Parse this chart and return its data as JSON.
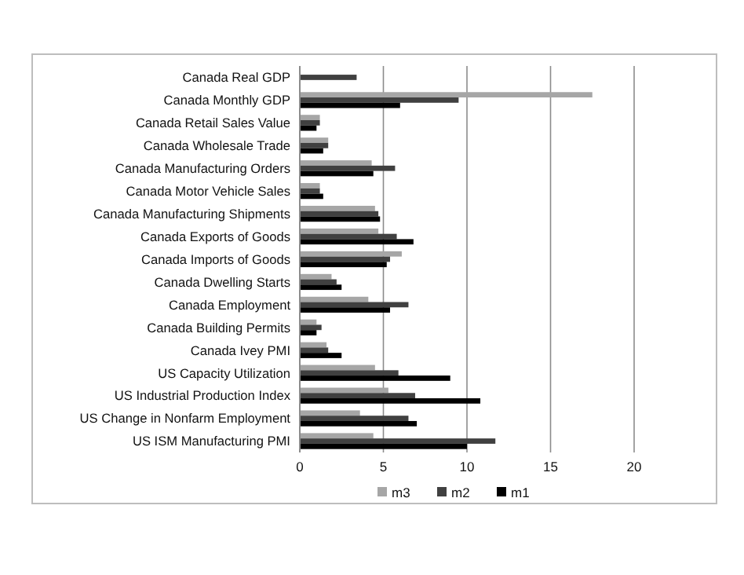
{
  "chart_data": {
    "type": "bar",
    "orientation": "horizontal",
    "categories": [
      "Canada Real GDP",
      "Canada Monthly GDP",
      "Canada Retail Sales Value",
      "Canada Wholesale Trade",
      "Canada Manufacturing Orders",
      "Canada Motor Vehicle Sales",
      "Canada Manufacturing Shipments",
      "Canada Exports of Goods",
      "Canada Imports of Goods",
      "Canada Dwelling Starts",
      "Canada Employment",
      "Canada Building Permits",
      "Canada Ivey PMI",
      "US Capacity Utilization",
      "US Industrial Production Index",
      "US Change in Nonfarm Employment",
      "US ISM Manufacturing PMI"
    ],
    "series": [
      {
        "name": "m3",
        "color": "#a6a6a6",
        "values": [
          null,
          17.5,
          1.2,
          1.7,
          4.3,
          1.2,
          4.5,
          4.7,
          6.1,
          1.9,
          4.1,
          1.0,
          1.6,
          4.5,
          5.3,
          3.6,
          4.4
        ]
      },
      {
        "name": "m2",
        "color": "#404040",
        "values": [
          3.4,
          9.5,
          1.2,
          1.7,
          5.7,
          1.2,
          4.7,
          5.8,
          5.4,
          2.2,
          6.5,
          1.3,
          1.7,
          5.9,
          6.9,
          6.5,
          11.7
        ]
      },
      {
        "name": "m1",
        "color": "#000000",
        "values": [
          null,
          6.0,
          1.0,
          1.4,
          4.4,
          1.4,
          4.8,
          6.8,
          5.2,
          2.5,
          5.4,
          1.0,
          2.5,
          9.0,
          10.8,
          7.0,
          10.0
        ]
      }
    ],
    "xlim": [
      0,
      20
    ],
    "xticks": [
      0,
      5,
      10,
      15,
      20
    ],
    "grid": "x",
    "legend": "bottom"
  }
}
